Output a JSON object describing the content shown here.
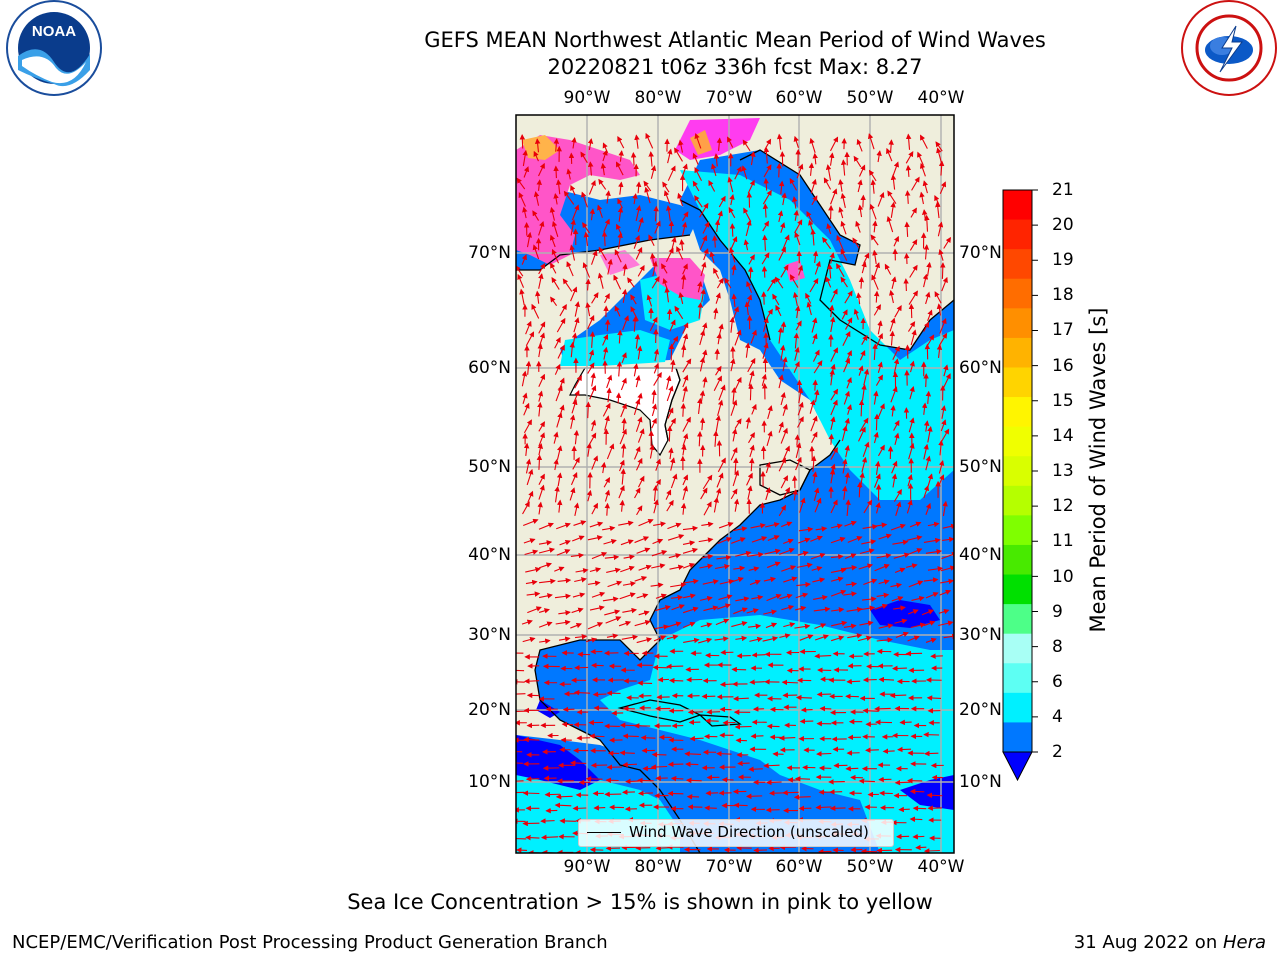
{
  "header": {
    "title_line1": "GEFS MEAN Northwest Atlantic Mean Period of Wind Waves",
    "title_line2": "20220821 t06z 336h fcst   Max: 8.27"
  },
  "logos": {
    "left": {
      "name": "noaa-logo",
      "text": "NOAA",
      "ring_text": "NATIONAL OCEANIC AND ATMOSPHERIC ADMINISTRATION · U.S. DEPARTMENT OF COMMERCE"
    },
    "right": {
      "name": "nws-logo",
      "ring_text": "NATIONAL WEATHER SERVICE"
    }
  },
  "map": {
    "lon_labels": [
      "90°W",
      "80°W",
      "70°W",
      "60°W",
      "50°W",
      "40°W"
    ],
    "lat_labels": [
      "70°N",
      "60°N",
      "50°N",
      "40°N",
      "30°N",
      "20°N",
      "10°N"
    ],
    "legend": "Wind Wave Direction (unscaled)",
    "colors": {
      "land": "#efeedc",
      "ice_free_sea": "#ffffff",
      "vector": "#e8000b",
      "grid": "#b0b0b0"
    }
  },
  "colorbar": {
    "label": "Mean Period of Wind Waves [s]",
    "ticks": [
      "21",
      "20",
      "19",
      "18",
      "17",
      "16",
      "15",
      "14",
      "13",
      "12",
      "11",
      "10",
      "9",
      "8",
      "6",
      "4",
      "2"
    ],
    "bands_top_to_bottom": [
      "#ff0000",
      "#ff2400",
      "#ff4800",
      "#ff6d00",
      "#ff8f00",
      "#ffb300",
      "#ffd400",
      "#fff500",
      "#f0ff00",
      "#d9ff00",
      "#b5ff00",
      "#7fff00",
      "#48ea00",
      "#00e000",
      "#4dff88",
      "#a8fff5",
      "#5dfff3",
      "#00f0ff",
      "#0078ff"
    ],
    "under_color": "#0000ff"
  },
  "footer": {
    "note": "Sea Ice Concentration > 15% is shown in pink to yellow",
    "left": "NCEP/EMC/Verification Post Processing Product Generation Branch",
    "right_prefix": "31 Aug 2022 on ",
    "right_host": "Hera"
  }
}
